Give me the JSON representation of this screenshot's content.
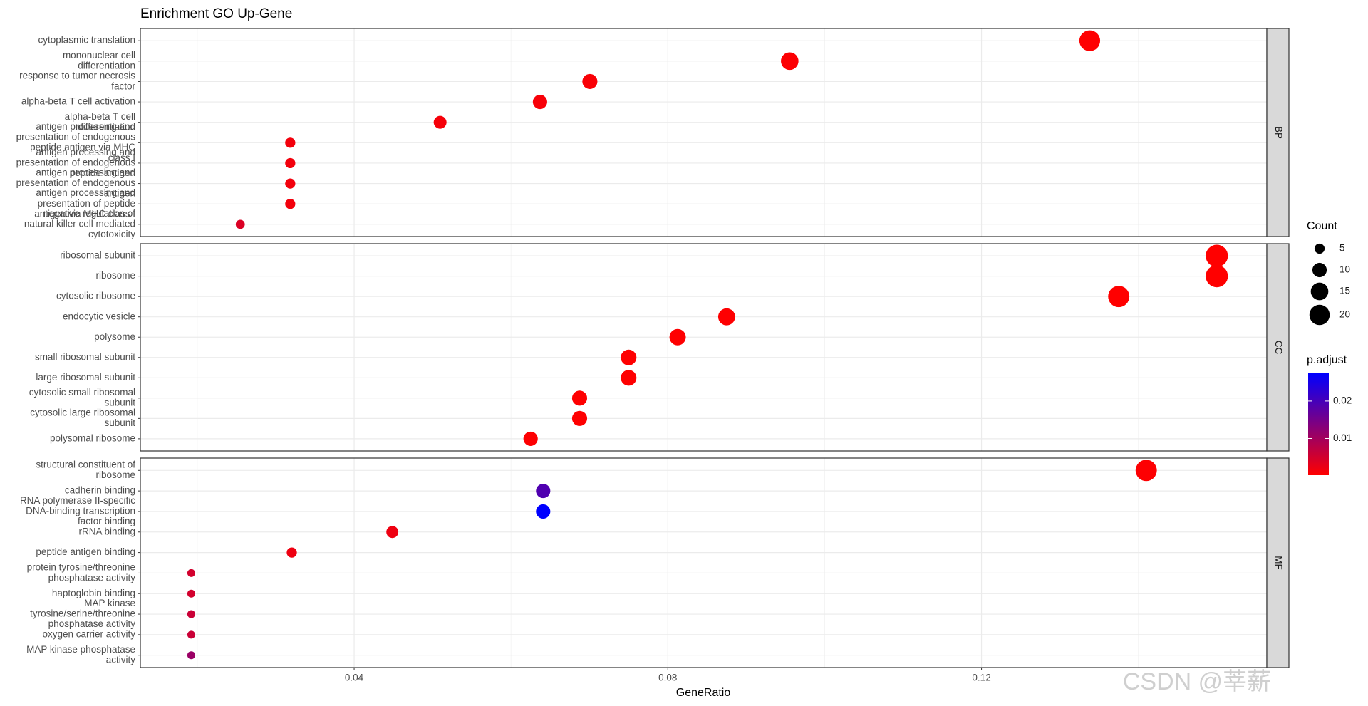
{
  "chart_data": {
    "type": "dotplot",
    "title": "Enrichment GO Up-Gene",
    "x_label": "GeneRatio",
    "xlim": [
      0.01274,
      0.15638
    ],
    "xticks": [
      0.04,
      0.08,
      0.12
    ],
    "minor_xticks": [
      0.02,
      0.06,
      0.1,
      0.14
    ],
    "grid": true,
    "panels": [
      {
        "strip": "BP",
        "categories": [
          [
            "cytoplasmic translation"
          ],
          [
            "mononuclear cell",
            "differentiation"
          ],
          [
            "response to tumor necrosis",
            "factor"
          ],
          [
            "alpha-beta T cell activation"
          ],
          [
            "alpha-beta T cell",
            "differentiation"
          ],
          [
            "antigen processing and",
            "presentation of endogenous",
            "peptide antigen via MHC",
            "class I"
          ],
          [
            "antigen processing and",
            "presentation of endogenous",
            "peptide antigen"
          ],
          [
            "antigen processing and",
            "presentation of endogenous",
            "antigen"
          ],
          [
            "antigen processing and",
            "presentation of peptide",
            "antigen via MHC class I"
          ],
          [
            "negative regulation of",
            "natural killer cell mediated",
            "cytotoxicity"
          ]
        ],
        "x": [
          0.1338,
          0.09554,
          0.07006,
          0.0637,
          0.05096,
          0.03185,
          0.03185,
          0.03185,
          0.03185,
          0.02548
        ],
        "count": [
          21,
          15,
          11,
          10,
          8,
          5,
          5,
          5,
          5,
          4
        ],
        "p_adjust": [
          0.0003,
          0.0005,
          0.0008,
          0.001,
          0.0012,
          0.0015,
          0.0015,
          0.0015,
          0.0015,
          0.004
        ]
      },
      {
        "strip": "CC",
        "categories": [
          [
            "ribosomal subunit"
          ],
          [
            "ribosome"
          ],
          [
            "cytosolic ribosome"
          ],
          [
            "endocytic vesicle"
          ],
          [
            "polysome"
          ],
          [
            "small ribosomal subunit"
          ],
          [
            "large ribosomal subunit"
          ],
          [
            "cytosolic small ribosomal",
            "subunit"
          ],
          [
            "cytosolic large ribosomal",
            "subunit"
          ],
          [
            "polysomal ribosome"
          ]
        ],
        "x": [
          0.15,
          0.15,
          0.1375,
          0.0875,
          0.08125,
          0.075,
          0.075,
          0.06875,
          0.06875,
          0.0625
        ],
        "count": [
          24,
          24,
          22,
          14,
          13,
          12,
          12,
          11,
          11,
          10
        ],
        "p_adjust": [
          0.0002,
          0.0002,
          0.0002,
          0.0003,
          0.0003,
          0.0003,
          0.0003,
          0.0003,
          0.0003,
          0.0004
        ]
      },
      {
        "strip": "MF",
        "categories": [
          [
            "structural constituent of",
            "ribosome"
          ],
          [
            "cadherin binding"
          ],
          [
            "RNA polymerase II-specific",
            "DNA-binding transcription",
            "factor binding"
          ],
          [
            "rRNA binding"
          ],
          [
            "peptide antigen binding"
          ],
          [
            "protein tyrosine/threonine",
            "phosphatase activity"
          ],
          [
            "haptoglobin binding"
          ],
          [
            "MAP kinase",
            "tyrosine/serine/threonine",
            "phosphatase activity"
          ],
          [
            "oxygen carrier activity"
          ],
          [
            "MAP kinase phosphatase",
            "activity"
          ]
        ],
        "x": [
          0.141,
          0.0641,
          0.0641,
          0.04487,
          0.03205,
          0.01923,
          0.01923,
          0.01923,
          0.01923,
          0.01923
        ],
        "count": [
          22,
          10,
          10,
          7,
          5,
          3,
          3,
          3,
          3,
          3
        ],
        "p_adjust": [
          0.0004,
          0.019,
          0.0274,
          0.002,
          0.002,
          0.005,
          0.005,
          0.006,
          0.006,
          0.011
        ]
      }
    ],
    "size_legend": {
      "title": "Count",
      "values": [
        5,
        10,
        15,
        20
      ]
    },
    "color_legend": {
      "title": "p.adjust",
      "ticks": [
        0.01,
        0.02
      ],
      "lim": [
        0.0002,
        0.0274
      ],
      "low_color": "#FF0000",
      "high_color": "#0000FF"
    },
    "watermark": "CSDN @莘薪"
  }
}
